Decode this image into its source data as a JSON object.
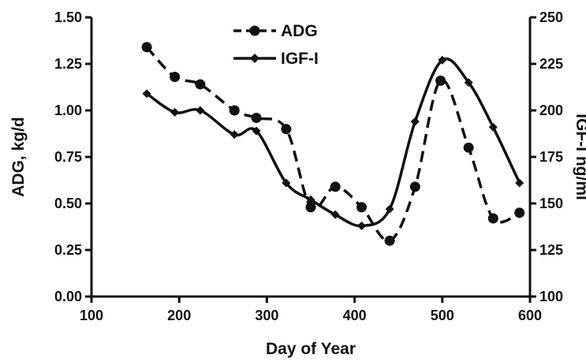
{
  "chart_data": {
    "type": "line",
    "xlabel": "Day of Year",
    "ylabel": "ADG, kg/d",
    "y2label": "IGF-I ng/ml",
    "xlim": [
      100,
      600
    ],
    "ylim": [
      0,
      1.5
    ],
    "y2lim": [
      100,
      250
    ],
    "x_ticks": [
      "100",
      "200",
      "300",
      "400",
      "500",
      "600"
    ],
    "y_ticks": [
      "0.00",
      "0.25",
      "0.50",
      "0.75",
      "1.00",
      "1.25",
      "1.50"
    ],
    "y2_ticks": [
      "100",
      "125",
      "150",
      "175",
      "200",
      "225",
      "250"
    ],
    "legend_position": "top-center",
    "series": [
      {
        "name": "ADG",
        "axis": "left",
        "line_style": "dashed",
        "marker": "circle",
        "color": "#111111",
        "x": [
          163,
          195,
          224,
          263,
          288,
          322,
          350,
          378,
          408,
          440,
          469,
          498,
          530,
          558,
          588
        ],
        "y": [
          1.34,
          1.18,
          1.14,
          1.0,
          0.96,
          0.9,
          0.48,
          0.59,
          0.48,
          0.3,
          0.59,
          1.16,
          0.8,
          0.42,
          0.45
        ]
      },
      {
        "name": "IGF-I",
        "axis": "right",
        "line_style": "solid",
        "marker": "diamond",
        "color": "#111111",
        "x": [
          163,
          195,
          224,
          263,
          288,
          322,
          350,
          378,
          408,
          440,
          469,
          500,
          530,
          558,
          588
        ],
        "y": [
          209,
          199,
          200,
          187,
          189,
          161,
          152,
          144,
          138,
          147,
          194,
          227,
          215,
          191,
          161
        ]
      }
    ]
  }
}
